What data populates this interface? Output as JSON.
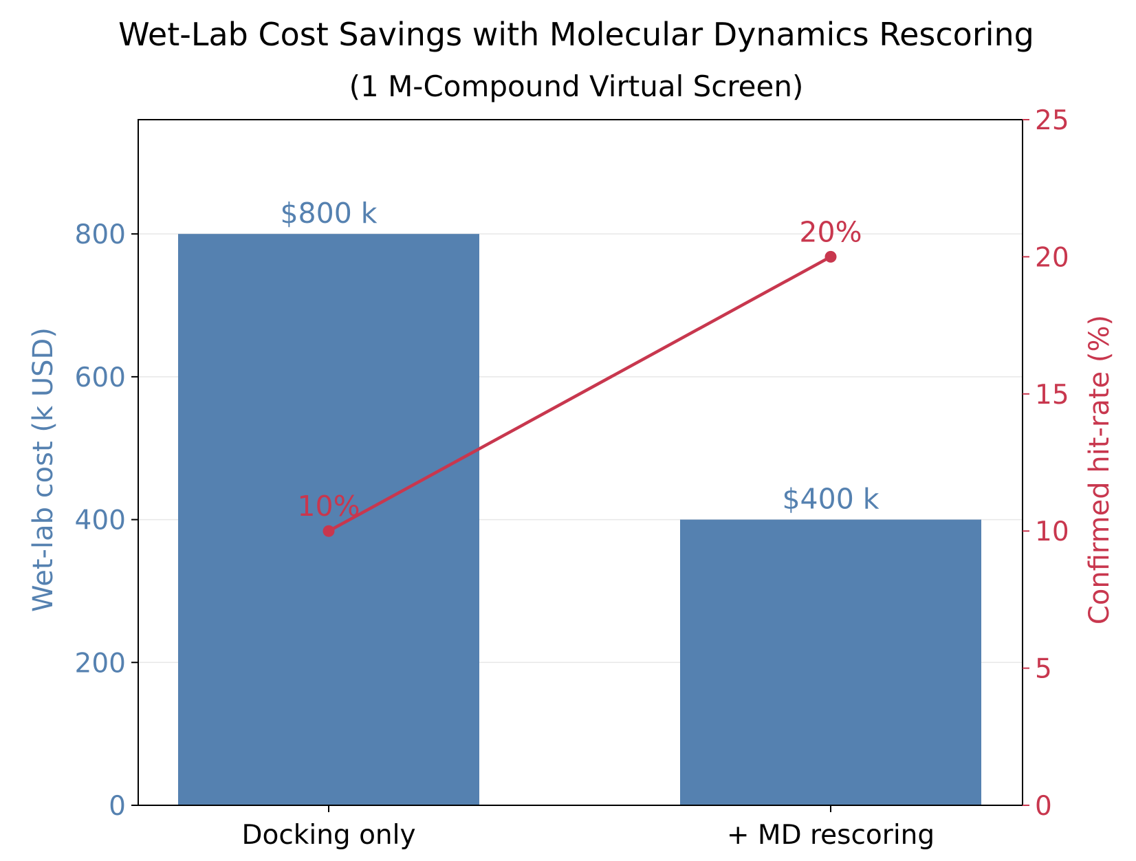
{
  "colors": {
    "bar": "#5581b0",
    "line": "#c8374e",
    "axis": "#000000",
    "grid": "#e8e8e8"
  },
  "chart_data": {
    "type": "bar",
    "title": "Wet-Lab Cost Savings with Molecular Dynamics Rescoring",
    "subtitle": "(1 M-Compound Virtual Screen)",
    "categories": [
      "Docking only",
      "+ MD rescoring"
    ],
    "series": [
      {
        "name": "Wet-lab cost",
        "type": "bar",
        "axis": "left",
        "values": [
          800,
          400
        ],
        "labels": [
          "$800 k",
          "$400 k"
        ]
      },
      {
        "name": "Confirmed hit-rate",
        "type": "line",
        "axis": "right",
        "values": [
          10,
          20
        ],
        "labels": [
          "10%",
          "20%"
        ]
      }
    ],
    "y_left": {
      "label": "Wet-lab cost (k USD)",
      "lim": [
        0,
        960
      ],
      "ticks": [
        0,
        200,
        400,
        600,
        800
      ]
    },
    "y_right": {
      "label": "Confirmed hit-rate (%)",
      "lim": [
        0,
        25
      ],
      "ticks": [
        0,
        5,
        10,
        15,
        20,
        25
      ]
    },
    "grid": "horizontal"
  }
}
